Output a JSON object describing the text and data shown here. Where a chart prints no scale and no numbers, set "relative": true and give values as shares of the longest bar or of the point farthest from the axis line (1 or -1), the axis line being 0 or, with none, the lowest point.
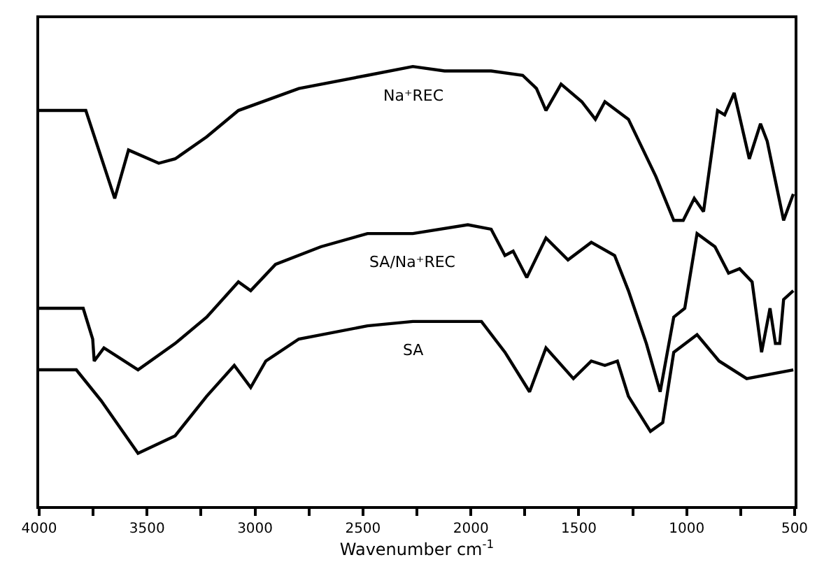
{
  "chart_data": {
    "type": "line",
    "relative": true,
    "xlabel": "Wavenumber cm$^{-1}$",
    "xlim": [
      4000,
      500
    ],
    "xticks": [
      4000,
      {
        "value": 3750,
        "label": null
      },
      3500,
      {
        "value": 3250,
        "label": null
      },
      3000,
      {
        "value": 2750,
        "label": null
      },
      2500,
      {
        "value": 2250,
        "label": null
      },
      2000,
      {
        "value": 1750,
        "label": null
      },
      1500,
      {
        "value": 1250,
        "label": null
      },
      1000,
      {
        "value": 750,
        "label": null
      },
      500
    ],
    "legend": false,
    "marker": "none",
    "line_style": "solid",
    "series": [
      {
        "name": "Na⁺REC",
        "color": "#000000",
        "x": [
          4000,
          3784,
          3650,
          3586,
          3446,
          3370,
          3224,
          3077,
          2797,
          2479,
          2269,
          2122,
          1906,
          1760,
          1696,
          1652,
          1582,
          1486,
          1423,
          1379,
          1270,
          1143,
          1060,
          1016,
          965,
          922,
          857,
          824,
          780,
          710,
          658,
          627,
          551,
          506
        ],
        "values": [
          0.9,
          0.9,
          0.7,
          0.81,
          0.78,
          0.79,
          0.84,
          0.9,
          0.95,
          0.98,
          1.0,
          0.99,
          0.99,
          0.98,
          0.95,
          0.9,
          0.96,
          0.92,
          0.88,
          0.92,
          0.88,
          0.75,
          0.65,
          0.65,
          0.7,
          0.67,
          0.9,
          0.89,
          0.94,
          0.79,
          0.87,
          0.83,
          0.65,
          0.71
        ]
      },
      {
        "name": "SA/Na⁺REC",
        "color": "#000000",
        "x": [
          4000,
          3796,
          3752,
          3745,
          3700,
          3542,
          3370,
          3224,
          3077,
          3020,
          2905,
          2695,
          2479,
          2269,
          2014,
          1906,
          1842,
          1804,
          1741,
          1652,
          1550,
          1442,
          1334,
          1270,
          1187,
          1123,
          1060,
          1009,
          952,
          869,
          806,
          755,
          697,
          653,
          614,
          589,
          569,
          551,
          506
        ],
        "values": [
          0.45,
          0.45,
          0.38,
          0.33,
          0.36,
          0.31,
          0.37,
          0.43,
          0.51,
          0.49,
          0.55,
          0.59,
          0.62,
          0.62,
          0.64,
          0.63,
          0.57,
          0.58,
          0.52,
          0.61,
          0.56,
          0.6,
          0.57,
          0.49,
          0.37,
          0.26,
          0.43,
          0.45,
          0.62,
          0.59,
          0.53,
          0.54,
          0.51,
          0.35,
          0.45,
          0.37,
          0.37,
          0.47,
          0.49
        ]
      },
      {
        "name": "SA",
        "color": "#000000",
        "x": [
          4000,
          3828,
          3713,
          3542,
          3370,
          3224,
          3096,
          3020,
          2950,
          2797,
          2479,
          2269,
          1951,
          1842,
          1728,
          1652,
          1525,
          1442,
          1379,
          1321,
          1270,
          1168,
          1111,
          1060,
          952,
          850,
          722,
          506
        ],
        "values": [
          0.31,
          0.31,
          0.24,
          0.12,
          0.16,
          0.25,
          0.32,
          0.27,
          0.33,
          0.38,
          0.41,
          0.42,
          0.42,
          0.35,
          0.26,
          0.36,
          0.29,
          0.33,
          0.32,
          0.33,
          0.25,
          0.17,
          0.19,
          0.35,
          0.39,
          0.33,
          0.29,
          0.31
        ]
      }
    ]
  }
}
